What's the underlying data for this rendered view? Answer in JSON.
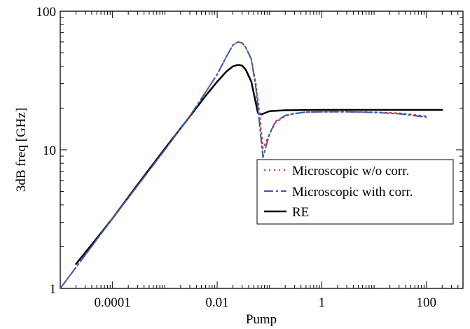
{
  "chart_data": {
    "type": "line",
    "title": "",
    "xlabel": "Pump",
    "ylabel": "3dB freq  [GHz]",
    "xscale": "log",
    "yscale": "log",
    "xlim": [
      1e-05,
      500
    ],
    "ylim": [
      1,
      100
    ],
    "grid": false,
    "legend_position": "center-right",
    "x_ticks": [
      {
        "value": 0.0001,
        "label": "0.0001"
      },
      {
        "value": 0.01,
        "label": "0.01"
      },
      {
        "value": 1,
        "label": "1"
      },
      {
        "value": 100,
        "label": "100"
      }
    ],
    "y_ticks": [
      {
        "value": 1,
        "label": "1"
      },
      {
        "value": 10,
        "label": "10"
      },
      {
        "value": 100,
        "label": "100"
      }
    ],
    "series": [
      {
        "name": "Microscopic w/o corr.",
        "color": "#e0332c",
        "style": "dotted",
        "x": [
          1e-05,
          3e-05,
          0.0001,
          0.0003,
          0.001,
          0.003,
          0.006,
          0.01,
          0.015,
          0.02,
          0.025,
          0.03,
          0.035,
          0.045,
          0.055,
          0.065,
          0.075,
          0.1,
          0.13,
          0.2,
          0.3,
          0.5,
          1,
          3,
          10,
          30,
          100
        ],
        "y": [
          1.0,
          1.74,
          3.2,
          5.5,
          10.0,
          17.5,
          26,
          35,
          47,
          57,
          60,
          59,
          55,
          45,
          30,
          18,
          10.2,
          13,
          15.7,
          17.5,
          18.2,
          18.7,
          18.8,
          18.8,
          18.7,
          18.4,
          17.5
        ]
      },
      {
        "name": "Microscopic with corr.",
        "color": "#3a5ba8",
        "style": "dashdot",
        "x": [
          1e-05,
          3e-05,
          0.0001,
          0.0003,
          0.001,
          0.003,
          0.006,
          0.01,
          0.015,
          0.02,
          0.025,
          0.03,
          0.035,
          0.045,
          0.055,
          0.065,
          0.075,
          0.1,
          0.13,
          0.2,
          0.3,
          0.5,
          1,
          3,
          10,
          30,
          100
        ],
        "y": [
          1.0,
          1.74,
          3.2,
          5.5,
          10.0,
          17.5,
          26,
          35,
          47,
          57,
          60,
          59,
          55,
          45,
          28,
          15,
          8.8,
          13,
          16,
          17.7,
          18.3,
          18.7,
          18.8,
          18.8,
          18.6,
          18.2,
          17.2
        ]
      },
      {
        "name": "RE",
        "color": "#000000",
        "style": "solid",
        "x": [
          2e-05,
          5e-05,
          0.0001,
          0.0003,
          0.001,
          0.003,
          0.006,
          0.01,
          0.015,
          0.02,
          0.025,
          0.03,
          0.035,
          0.045,
          0.06,
          0.07,
          0.1,
          0.2,
          1,
          10,
          100,
          200
        ],
        "y": [
          1.5,
          2.3,
          3.2,
          5.6,
          10.2,
          17.4,
          24.5,
          31,
          36.7,
          40,
          41,
          40.5,
          38,
          31,
          18.5,
          18,
          19,
          19.3,
          19.4,
          19.4,
          19.4,
          19.4
        ]
      }
    ]
  }
}
